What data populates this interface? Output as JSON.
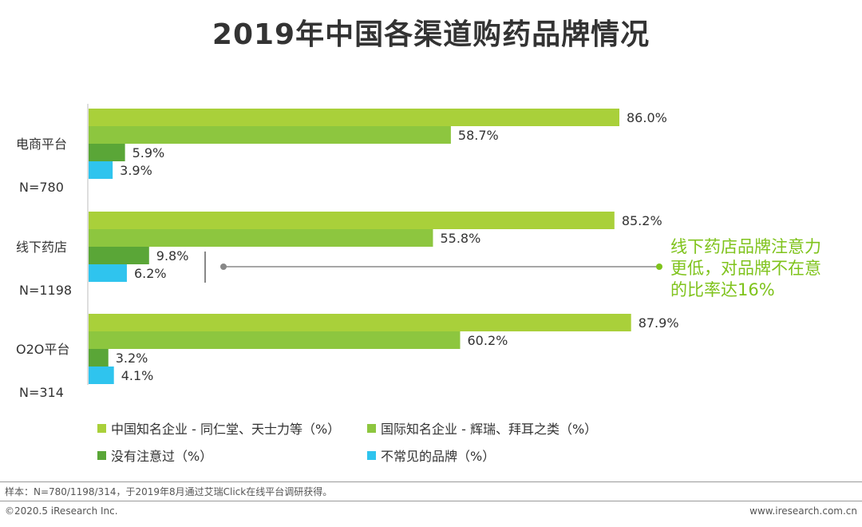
{
  "title": "2019年中国各渠道购药品牌情况",
  "chart_data": {
    "type": "bar",
    "orientation": "horizontal",
    "title": "2019年中国各渠道购药品牌情况",
    "groups": [
      {
        "label": "电商平台",
        "n": "N=780"
      },
      {
        "label": "线下药店",
        "n": "N=1198"
      },
      {
        "label": "O2O平台",
        "n": "N=314"
      }
    ],
    "series": [
      {
        "name": "中国知名企业 - 同仁堂、天士力等（%）",
        "color": "#a9d03a",
        "values": [
          86.0,
          85.2,
          87.9
        ]
      },
      {
        "name": "国际知名企业 - 辉瑞、拜耳之类（%）",
        "color": "#8dc63f",
        "values": [
          58.7,
          55.8,
          60.2
        ]
      },
      {
        "name": "没有注意过（%）",
        "color": "#5aa637",
        "values": [
          5.9,
          9.8,
          3.2
        ]
      },
      {
        "name": "不常见的品牌（%）",
        "color": "#2fc4ee",
        "values": [
          3.9,
          6.2,
          4.1
        ]
      }
    ],
    "value_suffix": "%",
    "legend_position": "bottom",
    "annotation": [
      "线下药店品牌注意力",
      "更低，对品牌不在意",
      "的比率达16%"
    ]
  },
  "note": "样本：N=780/1198/314，于2019年8月通过艾瑞Click在线平台调研获得。",
  "copyright": "©2020.5 iResearch Inc.",
  "website": "www.iresearch.com.cn",
  "colors": {
    "annotation": "#7fc31c",
    "bracket": "#888888"
  }
}
